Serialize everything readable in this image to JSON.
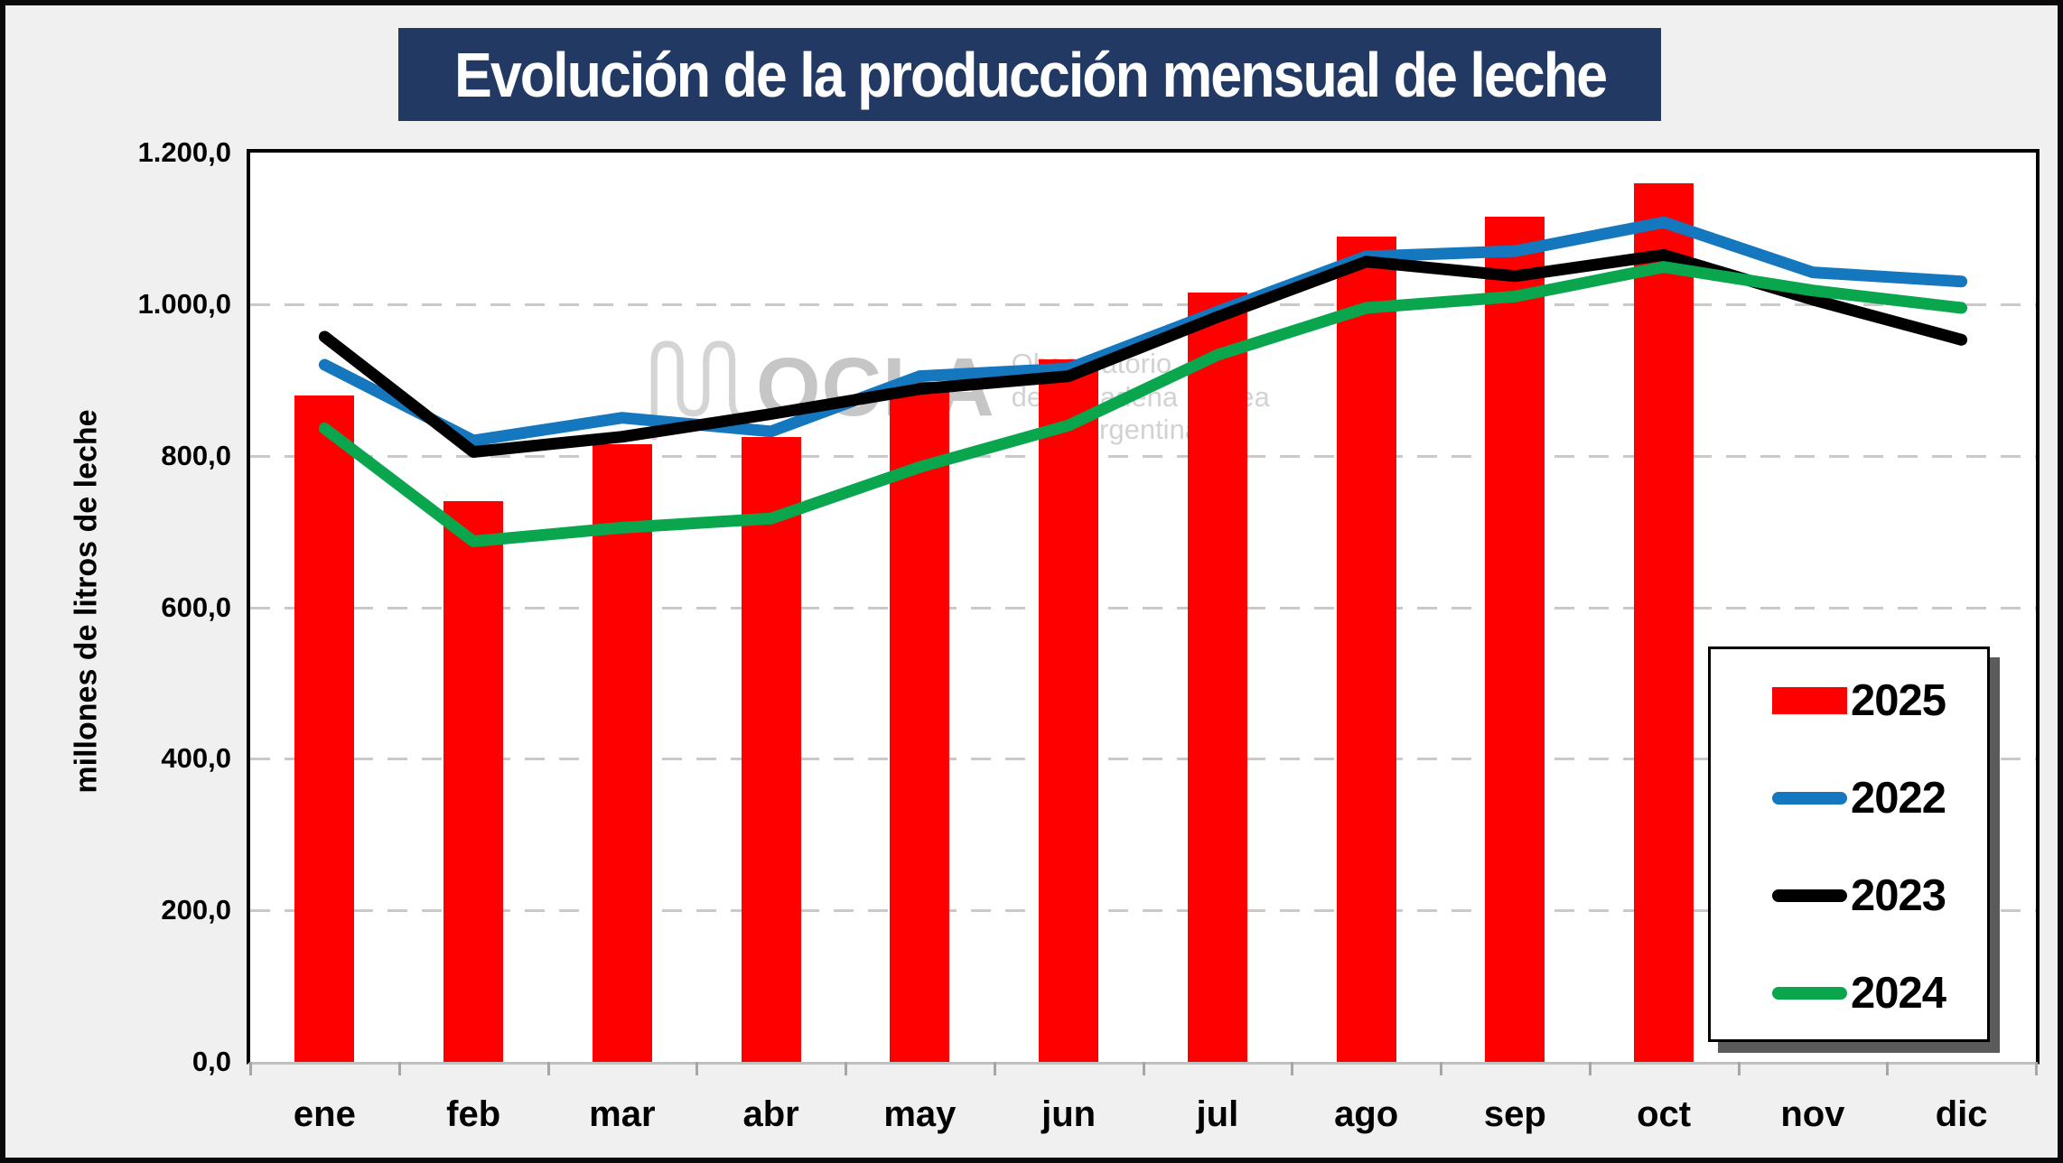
{
  "title": "Evolución de la producción mensual de leche",
  "y_axis": {
    "title": "millones de litros de leche",
    "tick_labels": [
      "1.200,0",
      "1.000,0",
      "800,0",
      "600,0",
      "400,0",
      "200,0",
      "0,0"
    ]
  },
  "x_axis": {
    "labels": [
      "ene",
      "feb",
      "mar",
      "abr",
      "may",
      "jun",
      "jul",
      "ago",
      "sep",
      "oct",
      "nov",
      "dic"
    ]
  },
  "watermark": {
    "brand": "OCLA",
    "line1": "Observatorio",
    "line2": "de la Cadena Láctea",
    "line3": "Argentina"
  },
  "legend": {
    "items": [
      {
        "label": "2025",
        "swatch": "bar",
        "color": "#FE0000"
      },
      {
        "label": "2022",
        "swatch": "line",
        "color": "#1577BE"
      },
      {
        "label": "2023",
        "swatch": "line",
        "color": "#000000"
      },
      {
        "label": "2024",
        "swatch": "line",
        "color": "#0AA64E"
      }
    ]
  },
  "colors": {
    "background": "#F0F0F0",
    "plot_background": "#FFFFFF",
    "title_banner": "#223A63",
    "title_text": "#FFFFFF",
    "gridline": "#C9C9C9",
    "axis_line": "#BFBFBF",
    "bar_2025": "#FE0000",
    "line_2022": "#1577BE",
    "line_2023": "#000000",
    "line_2024": "#0AA64E",
    "watermark_gray": "#C6C6C6"
  },
  "chart_data": {
    "type": "bar+line",
    "title": "Evolución de la producción mensual de leche",
    "ylabel": "millones de litros de leche",
    "ylim": [
      0,
      1200
    ],
    "ytick_step": 200,
    "grid": "horizontal-dashed",
    "legend_position": "inside-right",
    "categories": [
      "ene",
      "feb",
      "mar",
      "abr",
      "may",
      "jun",
      "jul",
      "ago",
      "sep",
      "oct",
      "nov",
      "dic"
    ],
    "series": [
      {
        "name": "2025",
        "type": "bar",
        "color": "#FE0000",
        "values": [
          880,
          740,
          815,
          825,
          897,
          927,
          1015,
          1089,
          1115,
          1160,
          null,
          null
        ]
      },
      {
        "name": "2022",
        "type": "line",
        "color": "#1577BE",
        "values": [
          920,
          820,
          850,
          832,
          905,
          915,
          990,
          1063,
          1070,
          1108,
          1042,
          1030
        ]
      },
      {
        "name": "2023",
        "type": "line",
        "color": "#000000",
        "values": [
          957,
          805,
          825,
          855,
          888,
          905,
          983,
          1056,
          1037,
          1065,
          1006,
          953
        ]
      },
      {
        "name": "2024",
        "type": "line",
        "color": "#0AA64E",
        "values": [
          836,
          687,
          705,
          717,
          785,
          840,
          933,
          995,
          1010,
          1049,
          1018,
          995
        ]
      }
    ]
  }
}
